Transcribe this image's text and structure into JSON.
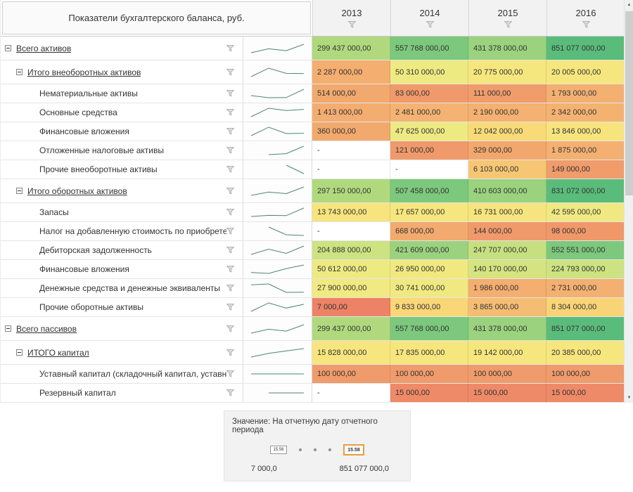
{
  "header": {
    "corner_title": "Показатели бухгалтерского баланса, руб.",
    "years": [
      "2013",
      "2014",
      "2015",
      "2016"
    ]
  },
  "icons": {
    "filter": "funnel",
    "collapse": "minus-box",
    "scroll_up": "▲",
    "scroll_down": "▼"
  },
  "style": {
    "spark_color": "#4d8575",
    "heat_min_color": "#ed8266",
    "heat_mid_color": "#f6e67e",
    "heat_max_color": "#5abc7b",
    "selected_border_color": "#e89c3c"
  },
  "rows": [
    {
      "label": "Всего активов",
      "level": 0,
      "group": true,
      "values": [
        "299 437 000,00",
        "557 768 000,00",
        "431 378 000,00",
        "851 077 000,00"
      ],
      "colors": [
        "#b0d97e",
        "#7cc87c",
        "#9bd27e",
        "#5abc7b"
      ]
    },
    {
      "label": "Итого внеоборотных активов",
      "level": 1,
      "group": true,
      "values": [
        "2 287 000,00",
        "50 310 000,00",
        "20 775 000,00",
        "20 005 000,00"
      ],
      "colors": [
        "#f3ae70",
        "#eeea82",
        "#f6e67e",
        "#f6e67e"
      ]
    },
    {
      "label": "Нематериальные активы",
      "level": 2,
      "group": false,
      "values": [
        "514 000,00",
        "83 000,00",
        "111 000,00",
        "1 793 000,00"
      ],
      "colors": [
        "#f2a96e",
        "#f09a6b",
        "#f09c6b",
        "#f3b071"
      ]
    },
    {
      "label": "Основные средства",
      "level": 2,
      "group": false,
      "values": [
        "1 413 000,00",
        "2 481 000,00",
        "2 190 000,00",
        "2 342 000,00"
      ],
      "colors": [
        "#f3ad70",
        "#f4b372",
        "#f4b171",
        "#f4b271"
      ]
    },
    {
      "label": "Финансовые вложения",
      "level": 2,
      "group": false,
      "values": [
        "360 000,00",
        "47 625 000,00",
        "12 042 000,00",
        "13 846 000,00"
      ],
      "colors": [
        "#f2a96e",
        "#eeea82",
        "#f9da79",
        "#f7e47d"
      ]
    },
    {
      "label": "Отложенные налоговые активы",
      "level": 2,
      "group": false,
      "values": [
        "-",
        "121 000,00",
        "329 000,00",
        "1 875 000,00"
      ],
      "colors": [
        "#ffffff",
        "#f09a6b",
        "#f2a76d",
        "#f3b071"
      ]
    },
    {
      "label": "Прочие внеоборотные активы",
      "level": 2,
      "group": false,
      "values": [
        "-",
        "-",
        "6 103 000,00",
        "149 000,00"
      ],
      "colors": [
        "#ffffff",
        "#ffffff",
        "#f6c675",
        "#f09c6b"
      ]
    },
    {
      "label": "Итого оборотных активов",
      "level": 1,
      "group": true,
      "values": [
        "297 150 000,00",
        "507 458 000,00",
        "410 603 000,00",
        "831 072 000,00"
      ],
      "colors": [
        "#b0d97e",
        "#7cc87c",
        "#9bd27e",
        "#5abc7b"
      ]
    },
    {
      "label": "Запасы",
      "level": 2,
      "group": false,
      "values": [
        "13 743 000,00",
        "17 657 000,00",
        "16 731 000,00",
        "42 595 000,00"
      ],
      "colors": [
        "#f7e47d",
        "#f6e67e",
        "#f6e57e",
        "#f0e982"
      ]
    },
    {
      "label": "Налог на добавленную стоимость по приобретен...",
      "level": 2,
      "group": false,
      "values": [
        "-",
        "668 000,00",
        "144 000,00",
        "98 000,00"
      ],
      "colors": [
        "#ffffff",
        "#f2aa6e",
        "#f09a6b",
        "#f0986a"
      ]
    },
    {
      "label": "Дебиторская задолженность",
      "level": 2,
      "group": false,
      "values": [
        "204 888 000,00",
        "421 609 000,00",
        "247 707 000,00",
        "552 551 000,00"
      ],
      "colors": [
        "#cde281",
        "#9bd27e",
        "#c6e080",
        "#7cc87c"
      ]
    },
    {
      "label": "Финансовые вложения",
      "level": 2,
      "group": false,
      "values": [
        "50 612 000,00",
        "26 950 000,00",
        "140 170 000,00",
        "224 793 000,00"
      ],
      "colors": [
        "#eeea82",
        "#f1e980",
        "#d5e481",
        "#cde281"
      ]
    },
    {
      "label": "Денежные средства и денежные эквиваленты",
      "level": 2,
      "group": false,
      "values": [
        "27 900 000,00",
        "30 741 000,00",
        "1 986 000,00",
        "2 731 000,00"
      ],
      "colors": [
        "#f1e981",
        "#f0e981",
        "#f3ae70",
        "#f3b071"
      ]
    },
    {
      "label": "Прочие оборотные активы",
      "level": 2,
      "group": false,
      "values": [
        "7 000,00",
        "9 833 000,00",
        "3 865 000,00",
        "8 304 000,00"
      ],
      "colors": [
        "#ed8266",
        "#f9d678",
        "#f5bd73",
        "#f9d477"
      ]
    },
    {
      "label": "Всего пассивов",
      "level": 0,
      "group": true,
      "values": [
        "299 437 000,00",
        "557 768 000,00",
        "431 378 000,00",
        "851 077 000,00"
      ],
      "colors": [
        "#b0d97e",
        "#7cc87c",
        "#9bd27e",
        "#5abc7b"
      ]
    },
    {
      "label": "ИТОГО капитал",
      "level": 1,
      "group": true,
      "values": [
        "15 828 000,00",
        "17 835 000,00",
        "19 142 000,00",
        "20 385 000,00"
      ],
      "colors": [
        "#f7e67e",
        "#f6e67e",
        "#f6e67e",
        "#f6e67e"
      ]
    },
    {
      "label": "Уставный капитал (складочный капитал, уставны...",
      "level": 2,
      "group": false,
      "values": [
        "100 000,00",
        "100 000,00",
        "100 000,00",
        "100 000,00"
      ],
      "colors": [
        "#f09b6b",
        "#f09b6b",
        "#f09b6b",
        "#f09b6b"
      ]
    },
    {
      "label": "Резервный капитал",
      "level": 2,
      "group": false,
      "values": [
        "-",
        "15 000,00",
        "15 000,00",
        "15 000,00"
      ],
      "colors": [
        "#ffffff",
        "#ee8a68",
        "#ee8a68",
        "#ee8a68"
      ]
    }
  ],
  "legend": {
    "title": "Значение: На отчетную дату отчетного периода",
    "size_small": "15.58",
    "size_large": "15.58",
    "min": "7 000,0",
    "max": "851 077 000,0"
  }
}
